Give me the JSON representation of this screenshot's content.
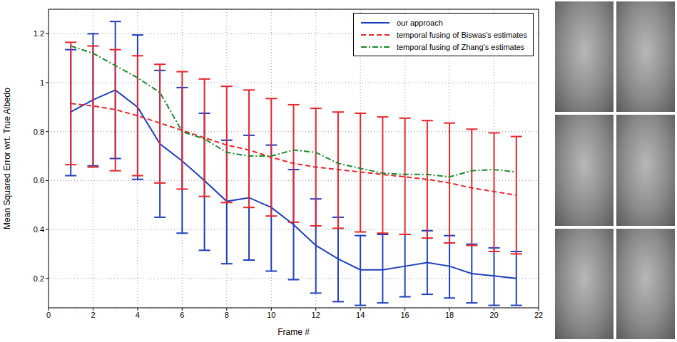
{
  "chart_data": {
    "type": "line",
    "x_label": "Frame #",
    "y_label": "Mean Squared Error wrt. True Albedo",
    "x": [
      1,
      2,
      3,
      4,
      5,
      6,
      7,
      8,
      9,
      10,
      11,
      12,
      13,
      14,
      15,
      16,
      17,
      18,
      19,
      20,
      21
    ],
    "xlim": [
      0,
      22
    ],
    "xticks": [
      0,
      2,
      4,
      6,
      8,
      10,
      12,
      14,
      16,
      18,
      20,
      22
    ],
    "ylim": [
      0.08,
      1.3
    ],
    "yticks": [
      0.2,
      0.4,
      0.6,
      0.8,
      1,
      1.2
    ],
    "grid": true,
    "legend": "upper right",
    "series": [
      {
        "name": "our approach",
        "color": "#1f3fbf",
        "line_style": "solid",
        "values": [
          0.88,
          0.93,
          0.97,
          0.9,
          0.75,
          0.68,
          0.6,
          0.515,
          0.53,
          0.49,
          0.42,
          0.335,
          0.28,
          0.235,
          0.235,
          0.25,
          0.265,
          0.25,
          0.22,
          0.21,
          0.2
        ],
        "lower": [
          0.62,
          0.66,
          0.69,
          0.605,
          0.45,
          0.385,
          0.315,
          0.26,
          0.275,
          0.23,
          0.195,
          0.14,
          0.105,
          0.09,
          0.1,
          0.125,
          0.135,
          0.12,
          0.1,
          0.09,
          0.09
        ],
        "upper": [
          1.135,
          1.2,
          1.25,
          1.195,
          1.05,
          0.98,
          0.875,
          0.765,
          0.785,
          0.745,
          0.645,
          0.525,
          0.45,
          0.375,
          0.38,
          0.38,
          0.395,
          0.375,
          0.34,
          0.325,
          0.31
        ]
      },
      {
        "name": "temporal fusing of Biswas's estimates",
        "color": "#e8262b",
        "line_style": "dashed",
        "values": [
          0.915,
          0.905,
          0.89,
          0.865,
          0.835,
          0.805,
          0.775,
          0.745,
          0.725,
          0.695,
          0.67,
          0.655,
          0.645,
          0.635,
          0.625,
          0.615,
          0.605,
          0.59,
          0.57,
          0.555,
          0.54
        ],
        "lower": [
          0.665,
          0.655,
          0.64,
          0.62,
          0.59,
          0.565,
          0.535,
          0.51,
          0.49,
          0.455,
          0.43,
          0.415,
          0.405,
          0.39,
          0.385,
          0.38,
          0.365,
          0.345,
          0.335,
          0.31,
          0.3
        ],
        "upper": [
          1.165,
          1.15,
          1.135,
          1.11,
          1.075,
          1.045,
          1.015,
          0.985,
          0.97,
          0.935,
          0.91,
          0.895,
          0.88,
          0.875,
          0.86,
          0.855,
          0.845,
          0.835,
          0.81,
          0.795,
          0.78
        ]
      },
      {
        "name": "temporal fusing of Zhang's estimates",
        "color": "#1e8a2e",
        "line_style": "dashdot",
        "values": [
          1.15,
          1.12,
          1.07,
          1.02,
          0.96,
          0.8,
          0.77,
          0.715,
          0.7,
          0.7,
          0.725,
          0.715,
          0.67,
          0.65,
          0.63,
          0.625,
          0.625,
          0.615,
          0.64,
          0.645,
          0.635
        ]
      }
    ]
  }
}
